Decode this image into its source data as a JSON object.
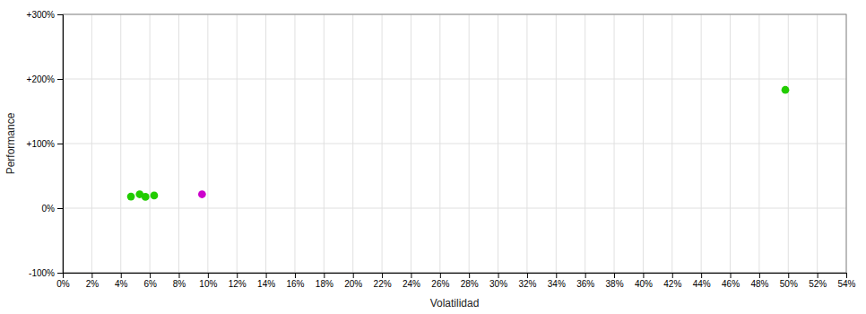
{
  "chart_data": {
    "type": "scatter",
    "x_label": "Volatilidad",
    "y_label": "Performance",
    "x": [
      0.047,
      0.053,
      0.057,
      0.063,
      0.096,
      0.498
    ],
    "values": [
      0.18,
      0.215,
      0.175,
      0.195,
      0.215,
      1.83
    ],
    "colors": [
      "#22cc00",
      "#22cc00",
      "#22cc00",
      "#22cc00",
      "#cc00cc",
      "#22cc00"
    ],
    "marker": "circle",
    "xlim": [
      0,
      0.54
    ],
    "ylim": [
      -1.0,
      3.0
    ],
    "xticks": [
      {
        "value": 0.0,
        "label": "0%"
      },
      {
        "value": 0.02,
        "label": "2%"
      },
      {
        "value": 0.04,
        "label": "4%"
      },
      {
        "value": 0.06,
        "label": "6%"
      },
      {
        "value": 0.08,
        "label": "8%"
      },
      {
        "value": 0.1,
        "label": "10%"
      },
      {
        "value": 0.12,
        "label": "12%"
      },
      {
        "value": 0.14,
        "label": "14%"
      },
      {
        "value": 0.16,
        "label": "16%"
      },
      {
        "value": 0.18,
        "label": "18%"
      },
      {
        "value": 0.2,
        "label": "20%"
      },
      {
        "value": 0.22,
        "label": "22%"
      },
      {
        "value": 0.24,
        "label": "24%"
      },
      {
        "value": 0.26,
        "label": "26%"
      },
      {
        "value": 0.28,
        "label": "28%"
      },
      {
        "value": 0.3,
        "label": "30%"
      },
      {
        "value": 0.32,
        "label": "32%"
      },
      {
        "value": 0.34,
        "label": "34%"
      },
      {
        "value": 0.36,
        "label": "36%"
      },
      {
        "value": 0.38,
        "label": "38%"
      },
      {
        "value": 0.4,
        "label": "40%"
      },
      {
        "value": 0.42,
        "label": "42%"
      },
      {
        "value": 0.44,
        "label": "44%"
      },
      {
        "value": 0.46,
        "label": "46%"
      },
      {
        "value": 0.48,
        "label": "48%"
      },
      {
        "value": 0.5,
        "label": "50%"
      },
      {
        "value": 0.52,
        "label": "52%"
      },
      {
        "value": 0.54,
        "label": "54%"
      }
    ],
    "yticks": [
      {
        "value": -1.0,
        "label": "-100%"
      },
      {
        "value": 0.0,
        "label": "0%"
      },
      {
        "value": 1.0,
        "label": "+100%"
      },
      {
        "value": 2.0,
        "label": "+200%"
      },
      {
        "value": 3.0,
        "label": "+300%"
      }
    ],
    "grid": true
  }
}
